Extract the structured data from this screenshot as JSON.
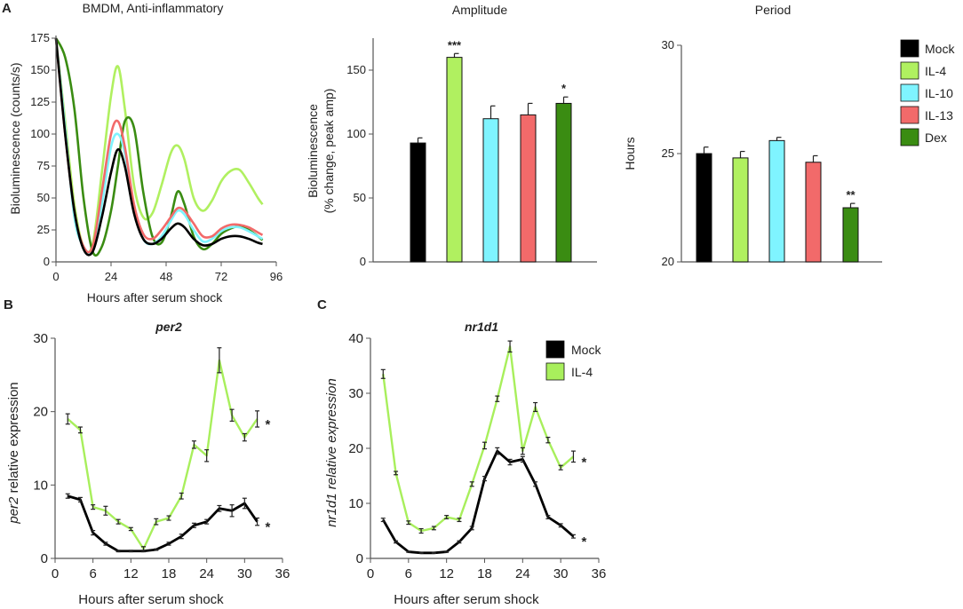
{
  "panel_labels": {
    "a": "A",
    "b": "B",
    "c": "C"
  },
  "legend_top": [
    {
      "label": "Mock",
      "color": "#000000"
    },
    {
      "label": "IL-4",
      "color": "#b0f060"
    },
    {
      "label": "IL-10",
      "color": "#7ff4ff"
    },
    {
      "label": "IL-13",
      "color": "#f26a6a"
    },
    {
      "label": "Dex",
      "color": "#3a8c12"
    }
  ],
  "legend_c": [
    {
      "label": "Mock",
      "color": "#000000"
    },
    {
      "label": "IL-4",
      "color": "#a8ef5c"
    }
  ],
  "chart_data": [
    {
      "id": "bioluminescence",
      "type": "line",
      "title": "BMDM, Anti-inflammatory",
      "xlabel": "Hours after serum shock",
      "ylabel": "Bioluminescence (counts/s)",
      "xlim": [
        0,
        96
      ],
      "ylim": [
        0,
        175
      ],
      "xticks": [
        "0",
        "24",
        "48",
        "72",
        "96"
      ],
      "yticks": [
        "0",
        "25",
        "50",
        "75",
        "100",
        "125",
        "150",
        "175"
      ],
      "x": [
        0,
        4,
        8,
        12,
        16,
        20,
        24,
        27,
        30,
        34,
        38,
        42,
        46,
        50,
        53,
        56,
        60,
        64,
        68,
        72,
        76,
        80,
        84,
        88,
        90
      ],
      "series": [
        {
          "name": "Mock",
          "values": [
            175,
            100,
            40,
            10,
            8,
            35,
            70,
            88,
            75,
            38,
            18,
            14,
            18,
            26,
            30,
            27,
            18,
            13,
            14,
            18,
            20,
            20,
            18,
            15,
            14
          ]
        },
        {
          "name": "IL-4",
          "values": [
            175,
            110,
            45,
            12,
            14,
            70,
            130,
            153,
            120,
            60,
            35,
            38,
            60,
            85,
            91,
            80,
            50,
            40,
            48,
            63,
            71,
            72,
            62,
            50,
            45
          ]
        },
        {
          "name": "IL-10",
          "values": [
            175,
            105,
            35,
            12,
            10,
            45,
            90,
            100,
            85,
            42,
            18,
            14,
            20,
            32,
            40,
            37,
            25,
            16,
            18,
            24,
            27,
            27,
            24,
            20,
            18
          ]
        },
        {
          "name": "IL-13",
          "values": [
            175,
            100,
            40,
            12,
            12,
            55,
            100,
            110,
            90,
            45,
            22,
            18,
            25,
            35,
            42,
            40,
            30,
            20,
            20,
            26,
            29,
            29,
            27,
            23,
            21
          ]
        },
        {
          "name": "Dex",
          "values": [
            175,
            160,
            120,
            50,
            8,
            12,
            40,
            75,
            110,
            105,
            55,
            20,
            15,
            35,
            55,
            45,
            20,
            10,
            14,
            22,
            26,
            28,
            25,
            20,
            17
          ]
        }
      ]
    },
    {
      "id": "amplitude",
      "type": "bar",
      "title": "Amplitude",
      "ylabel_line1": "Bioluminescence",
      "ylabel_line2": "(% change, peak amp)",
      "ylim": [
        0,
        175
      ],
      "yticks": [
        "0",
        "50",
        "100",
        "150"
      ],
      "categories": [
        "Mock",
        "IL-4",
        "IL-10",
        "IL-13",
        "Dex"
      ],
      "values": [
        93,
        160,
        112,
        115,
        124
      ],
      "errors": [
        4,
        3,
        10,
        9,
        5
      ],
      "annotations": [
        "",
        "***",
        "",
        "",
        "*"
      ]
    },
    {
      "id": "period",
      "type": "bar",
      "title": "Period",
      "ylabel": "Hours",
      "ylim": [
        20,
        30
      ],
      "yticks": [
        "20",
        "25",
        "30"
      ],
      "categories": [
        "Mock",
        "IL-4",
        "IL-10",
        "IL-13",
        "Dex"
      ],
      "values": [
        25.0,
        24.8,
        25.6,
        24.6,
        22.5
      ],
      "errors": [
        0.3,
        0.3,
        0.15,
        0.3,
        0.2
      ],
      "annotations": [
        "",
        "",
        "",
        "",
        "**"
      ]
    },
    {
      "id": "per2",
      "type": "line",
      "title": "per2",
      "xlabel": "Hours after serum shock",
      "ylabel_gene": "per2",
      "ylabel_rest": " relative expression",
      "xlim": [
        0,
        36
      ],
      "ylim": [
        0,
        30
      ],
      "xticks": [
        "0",
        "6",
        "12",
        "18",
        "24",
        "30",
        "36"
      ],
      "yticks": [
        "0",
        "10",
        "20",
        "30"
      ],
      "x": [
        2,
        4,
        6,
        8,
        10,
        12,
        14,
        16,
        18,
        20,
        22,
        24,
        26,
        28,
        30,
        32
      ],
      "series": [
        {
          "name": "Mock",
          "values": [
            8.5,
            8.0,
            3.5,
            2.0,
            1.0,
            1.0,
            1.0,
            1.2,
            2.0,
            3.0,
            4.5,
            5.0,
            6.8,
            6.5,
            7.5,
            5.0
          ],
          "errors": [
            0.3,
            0.3,
            0.3,
            0.2,
            0.1,
            0.1,
            0.1,
            0.1,
            0.2,
            0.3,
            0.3,
            0.3,
            0.4,
            0.8,
            0.7,
            0.5
          ],
          "annotation": "*"
        },
        {
          "name": "IL-4",
          "values": [
            19.0,
            17.5,
            7.0,
            6.5,
            5.0,
            4.0,
            1.3,
            5.0,
            5.5,
            8.5,
            15.5,
            14.0,
            27.0,
            19.5,
            16.5,
            19.0
          ],
          "errors": [
            0.7,
            0.4,
            0.3,
            0.6,
            0.3,
            0.2,
            0.3,
            0.4,
            0.3,
            0.4,
            0.5,
            0.8,
            1.7,
            0.8,
            0.5,
            1.1
          ],
          "annotation": "*"
        }
      ]
    },
    {
      "id": "nr1d1",
      "type": "line",
      "title": "nr1d1",
      "xlabel": "Hours after serum shock",
      "ylabel": "nr1d1 relative expression",
      "xlim": [
        0,
        36
      ],
      "ylim": [
        0,
        40
      ],
      "xticks": [
        "0",
        "6",
        "12",
        "18",
        "24",
        "30",
        "36"
      ],
      "yticks": [
        "0",
        "10",
        "20",
        "30",
        "40"
      ],
      "x": [
        2,
        4,
        6,
        8,
        10,
        12,
        14,
        16,
        18,
        20,
        22,
        24,
        26,
        28,
        30,
        32
      ],
      "series": [
        {
          "name": "Mock",
          "values": [
            7.0,
            3.0,
            1.2,
            1.0,
            1.0,
            1.2,
            3.0,
            5.5,
            14.5,
            19.5,
            17.5,
            18.0,
            13.5,
            7.5,
            6.0,
            4.0
          ],
          "errors": [
            0.3,
            0.2,
            0.1,
            0.1,
            0.1,
            0.1,
            0.2,
            0.3,
            0.4,
            0.6,
            0.5,
            0.5,
            0.4,
            0.3,
            0.3,
            0.3
          ],
          "annotation": "*"
        },
        {
          "name": "IL-4",
          "values": [
            33.5,
            15.5,
            6.5,
            5.0,
            5.5,
            7.5,
            7.0,
            13.5,
            20.5,
            29.0,
            38.5,
            19.5,
            27.5,
            21.5,
            16.5,
            18.5
          ],
          "errors": [
            0.8,
            0.3,
            0.3,
            0.4,
            0.3,
            0.3,
            0.3,
            0.4,
            0.6,
            0.5,
            1.0,
            0.6,
            0.8,
            0.5,
            0.4,
            1.0
          ],
          "annotation": "*"
        }
      ]
    }
  ]
}
